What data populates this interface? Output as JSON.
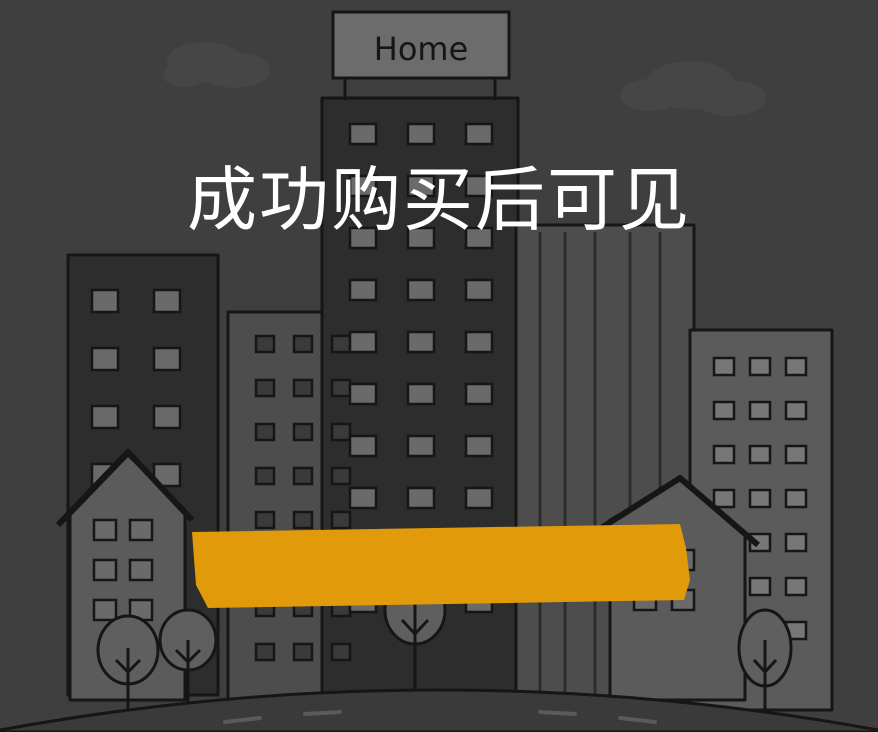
{
  "sign": {
    "label": "Home"
  },
  "overlay": {
    "message": "成功购买后可见"
  },
  "colors": {
    "background": "#3f3f3f",
    "ink": "#161616",
    "building_dark": "#2d2d2d",
    "building_mid": "#4d4d4d",
    "building_light": "#5f5f5f",
    "window_fill": "#6a6a6a",
    "redaction_bar": "#e09a0a",
    "text": "#ffffff"
  }
}
